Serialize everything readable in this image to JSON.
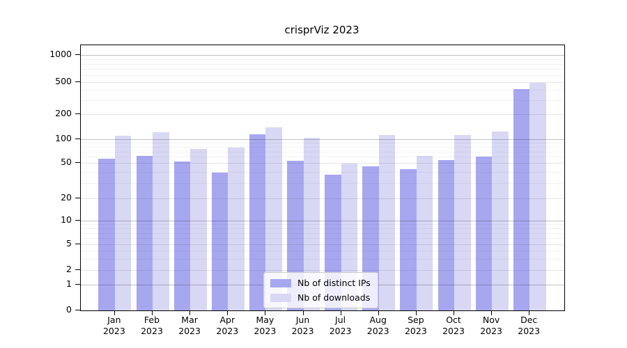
{
  "title": "crisprViz 2023",
  "chart_data": {
    "type": "bar",
    "categories": [
      "Jan 2023",
      "Feb 2023",
      "Mar 2023",
      "Apr 2023",
      "May 2023",
      "Jun 2023",
      "Jul 2023",
      "Aug 2023",
      "Sep 2023",
      "Oct 2023",
      "Nov 2023",
      "Dec 2023"
    ],
    "series": [
      {
        "name": "Nb of distinct IPs",
        "color": "#a7a7f0",
        "values": [
          57,
          62,
          52,
          39,
          114,
          54,
          37,
          46,
          43,
          55,
          60,
          405
        ]
      },
      {
        "name": "Nb of downloads",
        "color": "#d8d8f5",
        "values": [
          110,
          122,
          75,
          79,
          140,
          105,
          49,
          113,
          62,
          112,
          123,
          490
        ]
      }
    ],
    "yscale": "log",
    "y_ticks": [
      0,
      1,
      2,
      5,
      10,
      20,
      50,
      100,
      200,
      500,
      1000
    ],
    "ylim": [
      0,
      1300
    ],
    "grid": true,
    "legend_position": "lower center"
  }
}
